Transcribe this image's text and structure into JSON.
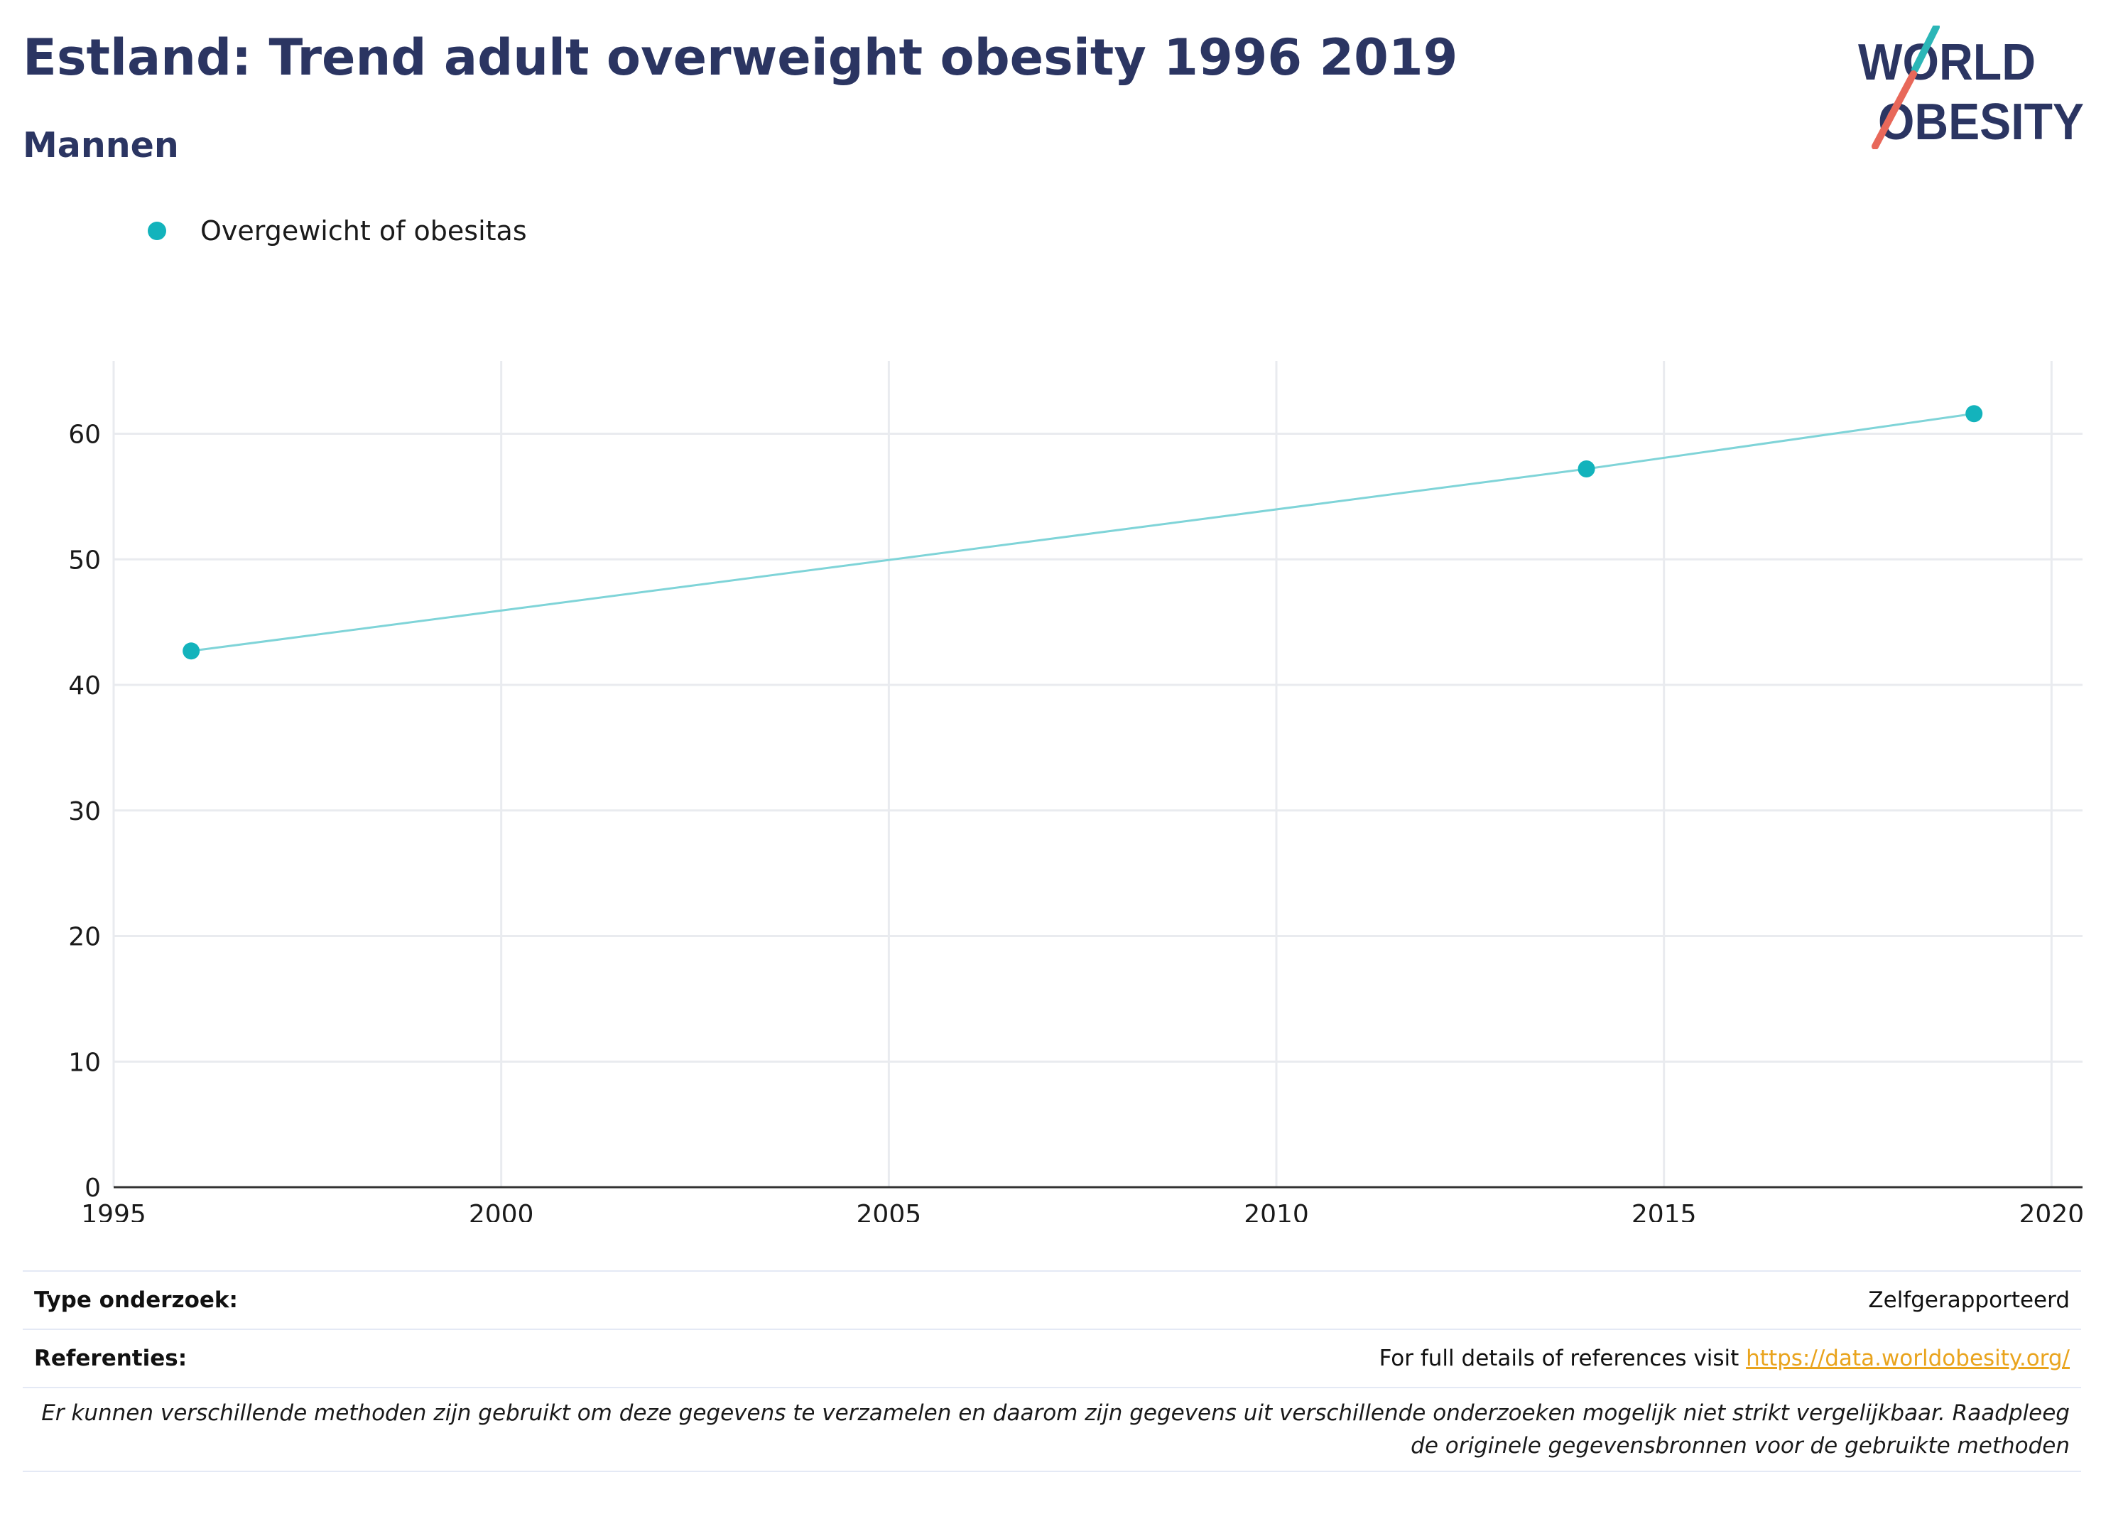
{
  "title": "Estland: Trend adult overweight obesity 1996 2019",
  "subtitle": "Mannen",
  "logo": {
    "line1": "WORLD",
    "line2": "OBESITY",
    "colors": {
      "text": "#2b3562",
      "teal": "#2bb6b7",
      "coral": "#e8685a"
    }
  },
  "legend": [
    {
      "label": "Overgewicht of obesitas",
      "color": "#13b3bc"
    }
  ],
  "colors": {
    "series": "#13b3bc",
    "line": "#7fd4d8",
    "grid": "#e9ebef",
    "axis": "#333333"
  },
  "chart_data": {
    "type": "line",
    "title": "Estland: Trend adult overweight obesity 1996 2019",
    "subtitle": "Mannen",
    "xlabel": "",
    "ylabel": "",
    "xlim": [
      1995,
      2020.4
    ],
    "ylim": [
      0,
      65.8
    ],
    "xticks": [
      1995,
      2000,
      2005,
      2010,
      2015,
      2020
    ],
    "yticks": [
      0,
      10,
      20,
      30,
      40,
      50,
      60
    ],
    "grid": true,
    "legend_position": "top-left",
    "series": [
      {
        "name": "Overgewicht of obesitas",
        "x": [
          1996,
          2014,
          2019
        ],
        "y": [
          42.7,
          57.2,
          61.6
        ]
      }
    ]
  },
  "info": {
    "survey_type_label": "Type onderzoek:",
    "survey_type_value": "Zelfgerapporteerd",
    "references_label": "Referenties:",
    "references_text": "For full details of references visit ",
    "references_link": "https://data.worldobesity.org/",
    "note": "Er kunnen verschillende methoden zijn gebruikt om deze gegevens te verzamelen en daarom zijn gegevens uit verschillende onderzoeken mogelijk niet strikt vergelijkbaar. Raadpleeg de originele gegevensbronnen voor de gebruikte methoden"
  }
}
